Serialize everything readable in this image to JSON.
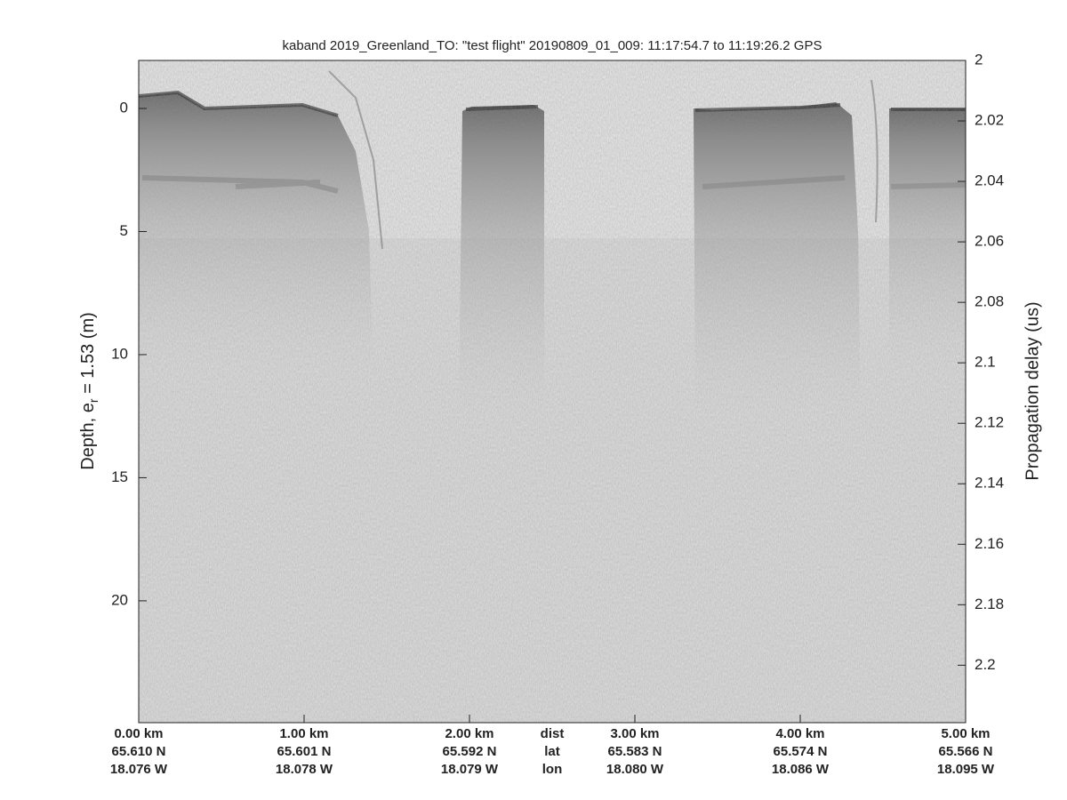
{
  "chart_data": {
    "type": "echogram",
    "title": "kaband 2019_Greenland_TO: \"test flight\"  20190809_01_009: 11:17:54.7 to 11:19:26.2 GPS",
    "ylabel": [
      "Depth, e",
      "r",
      " = 1.53 (m)"
    ],
    "y2label": "Propagation delay (us)",
    "xlim": [
      0,
      5
    ],
    "xticks": [
      {
        "value": 0,
        "label": "0.00 km"
      },
      {
        "value": 1,
        "label": "1.00 km"
      },
      {
        "value": 2,
        "label": "2.00 km"
      },
      {
        "value": 3,
        "label": "3.00 km"
      },
      {
        "value": 4,
        "label": "4.00 km"
      },
      {
        "value": 5,
        "label": "5.00 km"
      }
    ],
    "lat_labels": [
      "65.610 N",
      "65.601 N",
      "65.592 N",
      "65.583 N",
      "65.574 N",
      "65.566 N"
    ],
    "lon_labels": [
      "18.076 W",
      "18.078 W",
      "18.079 W",
      "18.080 W",
      "18.086 W",
      "18.095 W"
    ],
    "row_labels": [
      "dist",
      "lat",
      "lon"
    ],
    "ylim": [
      -1.95,
      24.95
    ],
    "yticks": [
      0,
      5,
      10,
      15,
      20
    ],
    "y2lim": [
      2,
      2.219
    ],
    "y2ticks": [
      2,
      2.02,
      2.04,
      2.06,
      2.08,
      2.1,
      2.12,
      2.14,
      2.16,
      2.18,
      2.2
    ]
  }
}
